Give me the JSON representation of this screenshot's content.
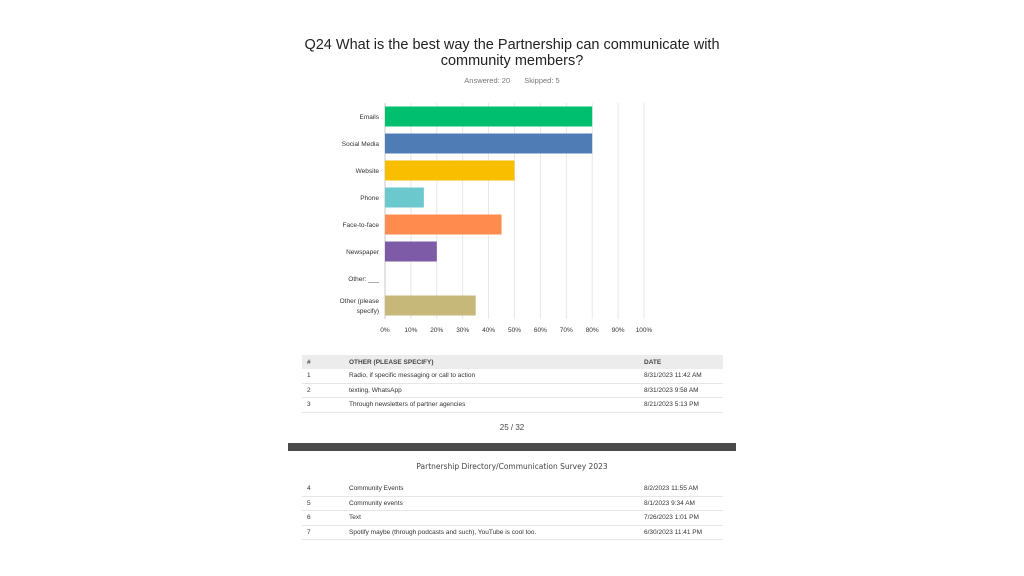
{
  "question": {
    "title": "Q24 What is the best way the Partnership can communicate with community members?",
    "answered": "Answered: 20",
    "skipped": "Skipped: 5"
  },
  "chart_data": {
    "type": "bar",
    "orientation": "horizontal",
    "categories": [
      "Emails",
      "Social Media",
      "Website",
      "Phone",
      "Face-to-face",
      "Newspaper",
      "Other: ___",
      "Other (please specify)"
    ],
    "values": [
      80,
      80,
      50,
      15,
      45,
      20,
      0,
      35
    ],
    "colors": [
      "#00bf6f",
      "#507cb6",
      "#f9be00",
      "#6bc8cd",
      "#ff8b4f",
      "#7d5ba6",
      "#ef4d5c",
      "#c6b879"
    ],
    "xlim": [
      0,
      100
    ],
    "xticks": [
      "0%",
      "10%",
      "20%",
      "30%",
      "40%",
      "50%",
      "60%",
      "70%",
      "80%",
      "90%",
      "100%"
    ],
    "grid": true
  },
  "table1": {
    "headers": {
      "num": "#",
      "text": "OTHER (PLEASE SPECIFY)",
      "date": "DATE"
    },
    "rows": [
      {
        "num": "1",
        "text": "Radio, if specific messaging or call to action",
        "date": "8/31/2023 11:42 AM"
      },
      {
        "num": "2",
        "text": "texting, WhatsApp",
        "date": "8/31/2023 9:58 AM"
      },
      {
        "num": "3",
        "text": "Through newsletters of partner agencies",
        "date": "8/21/2023 5:13 PM"
      }
    ]
  },
  "page_number": "25 / 32",
  "page2_header": "Partnership Directory/Communication Survey 2023",
  "table2": {
    "rows": [
      {
        "num": "4",
        "text": "Community Events",
        "date": "8/2/2023 11:55 AM"
      },
      {
        "num": "5",
        "text": "Community events",
        "date": "8/1/2023 9:34 AM"
      },
      {
        "num": "6",
        "text": "Text",
        "date": "7/26/2023 1:01 PM"
      },
      {
        "num": "7",
        "text": "Spotify maybe (through podcasts and such), YouTube is cool too.",
        "date": "6/30/2023 11:41 PM"
      }
    ]
  }
}
